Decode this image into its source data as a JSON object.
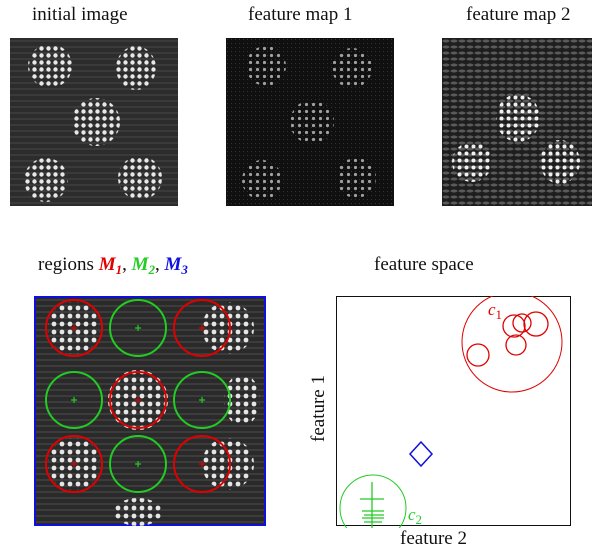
{
  "top_panels": {
    "initial_title": "initial image",
    "map1_title": "feature map 1",
    "map2_title": "feature map 2"
  },
  "regions_panel": {
    "title_prefix": "regions ",
    "regions": [
      {
        "symbol": "M",
        "index": "1",
        "color": "#e00000"
      },
      {
        "symbol": "M",
        "index": "2",
        "color": "#22cc22"
      },
      {
        "symbol": "M",
        "index": "3",
        "color": "#1010dd"
      }
    ],
    "separator": ", "
  },
  "feature_space": {
    "title": "feature space",
    "xlabel": "feature 2",
    "ylabel": "feature 1",
    "cluster_labels": [
      {
        "letter": "c",
        "index": "1",
        "color": "#e00000"
      },
      {
        "letter": "c",
        "index": "2",
        "color": "#22cc22"
      }
    ]
  },
  "colors": {
    "red": "#e00000",
    "green": "#22cc22",
    "blue": "#1010dd",
    "image_dark": "#3a3a3a"
  }
}
